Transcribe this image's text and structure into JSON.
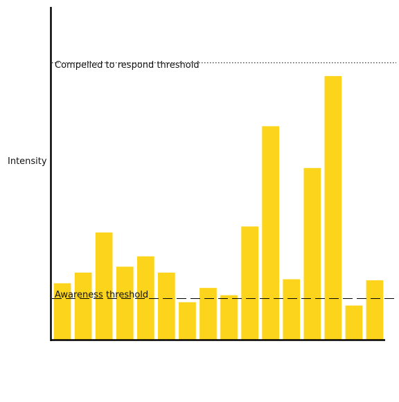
{
  "chart_data": {
    "type": "bar",
    "title": "",
    "xlabel": "",
    "ylabel": "Intensity",
    "ylim": [
      0,
      100
    ],
    "grid": false,
    "legend": "none",
    "bar_color": "#FDD41C",
    "axis_color": "#000000",
    "values": [
      17,
      20.2,
      32.3,
      22,
      25.1,
      20.2,
      11.3,
      15.6,
      13.4,
      34.1,
      64.3,
      18.2,
      51.7,
      79.4,
      10.3,
      17.9
    ],
    "thresholds": [
      {
        "label": "Compelled to respond threshold",
        "value": 83.4,
        "style": "dotted"
      },
      {
        "label": "Awareness threshold",
        "value": 12.4,
        "style": "dashed"
      }
    ]
  }
}
